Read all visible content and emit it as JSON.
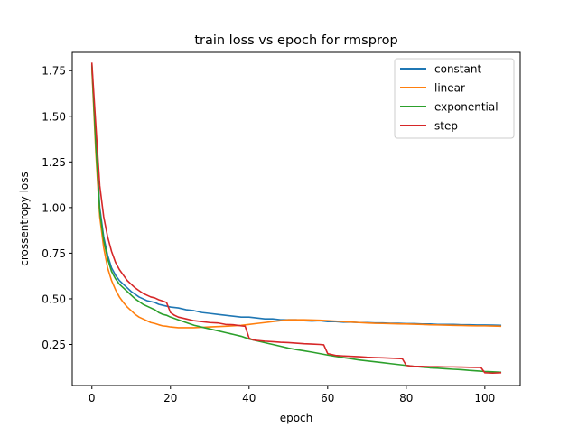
{
  "chart_data": {
    "type": "line",
    "title": "train loss vs epoch for rmsprop",
    "xlabel": "epoch",
    "ylabel": "crossentropy loss",
    "xlim": [
      -5,
      109
    ],
    "ylim": [
      0.025,
      1.85
    ],
    "xticks": [
      0,
      20,
      40,
      60,
      80,
      100
    ],
    "xtick_labels": [
      "0",
      "20",
      "40",
      "60",
      "80",
      "100"
    ],
    "yticks": [
      0.25,
      0.5,
      0.75,
      1.0,
      1.25,
      1.5,
      1.75
    ],
    "ytick_labels": [
      "0.25",
      "0.50",
      "0.75",
      "1.00",
      "1.25",
      "1.50",
      "1.75"
    ],
    "grid": false,
    "legend_position": "top-right",
    "series": [
      {
        "name": "constant",
        "color": "#1f77b4",
        "points": [
          [
            0,
            1.77
          ],
          [
            1,
            1.35
          ],
          [
            2,
            1.0
          ],
          [
            3,
            0.84
          ],
          [
            4,
            0.74
          ],
          [
            5,
            0.67
          ],
          [
            6,
            0.63
          ],
          [
            7,
            0.6
          ],
          [
            8,
            0.58
          ],
          [
            9,
            0.56
          ],
          [
            10,
            0.54
          ],
          [
            11,
            0.525
          ],
          [
            12,
            0.51
          ],
          [
            13,
            0.5
          ],
          [
            14,
            0.49
          ],
          [
            15,
            0.485
          ],
          [
            16,
            0.48
          ],
          [
            17,
            0.47
          ],
          [
            18,
            0.465
          ],
          [
            19,
            0.46
          ],
          [
            20,
            0.455
          ],
          [
            22,
            0.45
          ],
          [
            24,
            0.44
          ],
          [
            26,
            0.435
          ],
          [
            28,
            0.425
          ],
          [
            30,
            0.42
          ],
          [
            32,
            0.415
          ],
          [
            34,
            0.41
          ],
          [
            36,
            0.405
          ],
          [
            38,
            0.4
          ],
          [
            40,
            0.4
          ],
          [
            42,
            0.395
          ],
          [
            44,
            0.39
          ],
          [
            46,
            0.39
          ],
          [
            48,
            0.385
          ],
          [
            50,
            0.385
          ],
          [
            52,
            0.385
          ],
          [
            54,
            0.38
          ],
          [
            56,
            0.378
          ],
          [
            58,
            0.38
          ],
          [
            60,
            0.375
          ],
          [
            62,
            0.375
          ],
          [
            64,
            0.372
          ],
          [
            66,
            0.372
          ],
          [
            68,
            0.37
          ],
          [
            70,
            0.37
          ],
          [
            72,
            0.368
          ],
          [
            74,
            0.368
          ],
          [
            76,
            0.366
          ],
          [
            78,
            0.366
          ],
          [
            80,
            0.364
          ],
          [
            82,
            0.364
          ],
          [
            84,
            0.362
          ],
          [
            86,
            0.362
          ],
          [
            88,
            0.36
          ],
          [
            90,
            0.36
          ],
          [
            92,
            0.36
          ],
          [
            94,
            0.358
          ],
          [
            96,
            0.358
          ],
          [
            98,
            0.357
          ],
          [
            100,
            0.357
          ],
          [
            102,
            0.356
          ],
          [
            104,
            0.355
          ]
        ]
      },
      {
        "name": "linear",
        "color": "#ff7f0e",
        "points": [
          [
            0,
            1.76
          ],
          [
            1,
            1.3
          ],
          [
            2,
            0.95
          ],
          [
            3,
            0.78
          ],
          [
            4,
            0.67
          ],
          [
            5,
            0.6
          ],
          [
            6,
            0.55
          ],
          [
            7,
            0.51
          ],
          [
            8,
            0.48
          ],
          [
            9,
            0.455
          ],
          [
            10,
            0.435
          ],
          [
            11,
            0.415
          ],
          [
            12,
            0.4
          ],
          [
            13,
            0.39
          ],
          [
            14,
            0.38
          ],
          [
            15,
            0.37
          ],
          [
            16,
            0.365
          ],
          [
            17,
            0.358
          ],
          [
            18,
            0.352
          ],
          [
            19,
            0.35
          ],
          [
            20,
            0.346
          ],
          [
            22,
            0.342
          ],
          [
            24,
            0.342
          ],
          [
            26,
            0.342
          ],
          [
            28,
            0.344
          ],
          [
            30,
            0.346
          ],
          [
            32,
            0.348
          ],
          [
            34,
            0.35
          ],
          [
            36,
            0.352
          ],
          [
            38,
            0.355
          ],
          [
            40,
            0.36
          ],
          [
            42,
            0.365
          ],
          [
            44,
            0.37
          ],
          [
            46,
            0.375
          ],
          [
            48,
            0.38
          ],
          [
            50,
            0.385
          ],
          [
            52,
            0.385
          ],
          [
            54,
            0.385
          ],
          [
            56,
            0.384
          ],
          [
            58,
            0.383
          ],
          [
            60,
            0.38
          ],
          [
            62,
            0.378
          ],
          [
            64,
            0.375
          ],
          [
            66,
            0.373
          ],
          [
            68,
            0.37
          ],
          [
            70,
            0.368
          ],
          [
            72,
            0.366
          ],
          [
            74,
            0.365
          ],
          [
            76,
            0.364
          ],
          [
            78,
            0.363
          ],
          [
            80,
            0.362
          ],
          [
            82,
            0.361
          ],
          [
            84,
            0.36
          ],
          [
            86,
            0.358
          ],
          [
            88,
            0.357
          ],
          [
            90,
            0.356
          ],
          [
            92,
            0.355
          ],
          [
            94,
            0.354
          ],
          [
            96,
            0.353
          ],
          [
            98,
            0.352
          ],
          [
            100,
            0.352
          ],
          [
            102,
            0.351
          ],
          [
            104,
            0.35
          ]
        ]
      },
      {
        "name": "exponential",
        "color": "#2ca02c",
        "points": [
          [
            0,
            1.78
          ],
          [
            1,
            1.34
          ],
          [
            2,
            0.98
          ],
          [
            3,
            0.82
          ],
          [
            4,
            0.72
          ],
          [
            5,
            0.65
          ],
          [
            6,
            0.61
          ],
          [
            7,
            0.58
          ],
          [
            8,
            0.56
          ],
          [
            9,
            0.54
          ],
          [
            10,
            0.52
          ],
          [
            11,
            0.5
          ],
          [
            12,
            0.485
          ],
          [
            13,
            0.47
          ],
          [
            14,
            0.46
          ],
          [
            15,
            0.45
          ],
          [
            16,
            0.44
          ],
          [
            17,
            0.425
          ],
          [
            18,
            0.415
          ],
          [
            19,
            0.41
          ],
          [
            20,
            0.4
          ],
          [
            22,
            0.385
          ],
          [
            24,
            0.37
          ],
          [
            26,
            0.355
          ],
          [
            28,
            0.345
          ],
          [
            30,
            0.335
          ],
          [
            32,
            0.325
          ],
          [
            34,
            0.315
          ],
          [
            36,
            0.305
          ],
          [
            38,
            0.295
          ],
          [
            40,
            0.28
          ],
          [
            42,
            0.27
          ],
          [
            44,
            0.26
          ],
          [
            46,
            0.25
          ],
          [
            48,
            0.24
          ],
          [
            50,
            0.23
          ],
          [
            52,
            0.222
          ],
          [
            54,
            0.215
          ],
          [
            56,
            0.208
          ],
          [
            58,
            0.2
          ],
          [
            60,
            0.192
          ],
          [
            62,
            0.185
          ],
          [
            64,
            0.178
          ],
          [
            66,
            0.172
          ],
          [
            68,
            0.165
          ],
          [
            70,
            0.16
          ],
          [
            72,
            0.155
          ],
          [
            74,
            0.15
          ],
          [
            76,
            0.145
          ],
          [
            78,
            0.14
          ],
          [
            80,
            0.135
          ],
          [
            82,
            0.13
          ],
          [
            84,
            0.126
          ],
          [
            86,
            0.122
          ],
          [
            88,
            0.12
          ],
          [
            90,
            0.117
          ],
          [
            92,
            0.114
          ],
          [
            94,
            0.112
          ],
          [
            96,
            0.108
          ],
          [
            98,
            0.105
          ],
          [
            100,
            0.102
          ],
          [
            102,
            0.1
          ],
          [
            104,
            0.098
          ]
        ]
      },
      {
        "name": "step",
        "color": "#d62728",
        "points": [
          [
            0,
            1.79
          ],
          [
            1,
            1.45
          ],
          [
            2,
            1.12
          ],
          [
            3,
            0.95
          ],
          [
            4,
            0.84
          ],
          [
            5,
            0.76
          ],
          [
            6,
            0.7
          ],
          [
            7,
            0.66
          ],
          [
            8,
            0.63
          ],
          [
            9,
            0.6
          ],
          [
            10,
            0.58
          ],
          [
            11,
            0.56
          ],
          [
            12,
            0.545
          ],
          [
            13,
            0.53
          ],
          [
            14,
            0.52
          ],
          [
            15,
            0.51
          ],
          [
            16,
            0.505
          ],
          [
            17,
            0.495
          ],
          [
            18,
            0.488
          ],
          [
            19,
            0.48
          ],
          [
            20,
            0.425
          ],
          [
            21,
            0.41
          ],
          [
            22,
            0.4
          ],
          [
            24,
            0.39
          ],
          [
            26,
            0.38
          ],
          [
            28,
            0.375
          ],
          [
            30,
            0.37
          ],
          [
            32,
            0.368
          ],
          [
            34,
            0.36
          ],
          [
            36,
            0.358
          ],
          [
            38,
            0.352
          ],
          [
            39,
            0.35
          ],
          [
            40,
            0.285
          ],
          [
            41,
            0.275
          ],
          [
            42,
            0.272
          ],
          [
            44,
            0.268
          ],
          [
            46,
            0.265
          ],
          [
            48,
            0.262
          ],
          [
            50,
            0.26
          ],
          [
            52,
            0.257
          ],
          [
            54,
            0.254
          ],
          [
            56,
            0.252
          ],
          [
            58,
            0.25
          ],
          [
            59,
            0.248
          ],
          [
            60,
            0.2
          ],
          [
            61,
            0.195
          ],
          [
            62,
            0.19
          ],
          [
            64,
            0.187
          ],
          [
            66,
            0.185
          ],
          [
            68,
            0.183
          ],
          [
            70,
            0.18
          ],
          [
            72,
            0.178
          ],
          [
            74,
            0.177
          ],
          [
            76,
            0.175
          ],
          [
            78,
            0.173
          ],
          [
            79,
            0.172
          ],
          [
            80,
            0.135
          ],
          [
            82,
            0.13
          ],
          [
            84,
            0.13
          ],
          [
            86,
            0.128
          ],
          [
            88,
            0.128
          ],
          [
            90,
            0.127
          ],
          [
            92,
            0.127
          ],
          [
            94,
            0.126
          ],
          [
            96,
            0.125
          ],
          [
            98,
            0.124
          ],
          [
            99,
            0.124
          ],
          [
            100,
            0.095
          ],
          [
            102,
            0.093
          ],
          [
            104,
            0.095
          ]
        ]
      }
    ]
  }
}
